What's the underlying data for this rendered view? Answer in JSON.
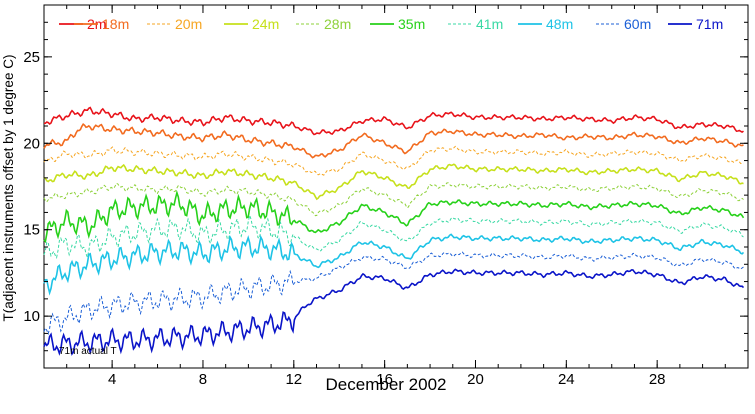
{
  "chart_data": {
    "type": "line",
    "xlabel": "December 2002",
    "ylabel": "T(adjacent instruments offset by 1 degree C)",
    "xlim": [
      1,
      32
    ],
    "ylim": [
      7,
      28
    ],
    "x_ticks": [
      "4",
      "8",
      "12",
      "16",
      "20",
      "24",
      "28"
    ],
    "y_ticks": [
      "10",
      "15",
      "20",
      "25"
    ],
    "annotation": "71m actual T",
    "legend_position": "top",
    "series": [
      {
        "name": "2m",
        "color": "#e8131a",
        "dash": "solid",
        "x": [
          1,
          2,
          3,
          4,
          5,
          6,
          7,
          8,
          9,
          10,
          11,
          12,
          13,
          14,
          15,
          16,
          17,
          18,
          19,
          20,
          21,
          22,
          23,
          24,
          25,
          26,
          27,
          28,
          29,
          30,
          31,
          31.8
        ],
        "y": [
          21.2,
          21.6,
          21.9,
          21.7,
          21.4,
          21.5,
          21.3,
          21.2,
          21.5,
          21.3,
          21.2,
          21.0,
          20.6,
          20.7,
          21.3,
          21.4,
          20.9,
          21.6,
          21.7,
          21.5,
          21.5,
          21.5,
          21.4,
          21.5,
          21.4,
          21.3,
          21.5,
          21.4,
          20.9,
          21.1,
          21.0,
          20.7
        ]
      },
      {
        "name": "18m",
        "color": "#f26b1f",
        "dash": "solid",
        "x": [
          1,
          2,
          2.5,
          3,
          4,
          5,
          6,
          7,
          8,
          9,
          10,
          11,
          12,
          13,
          14,
          15,
          16,
          17,
          18,
          19,
          20,
          21,
          22,
          23,
          24,
          25,
          26,
          27,
          28,
          29,
          30,
          31,
          31.8
        ],
        "y": [
          19.9,
          20.1,
          20.8,
          21.0,
          20.8,
          20.7,
          20.6,
          20.4,
          20.3,
          20.5,
          20.2,
          20.0,
          19.8,
          19.2,
          19.6,
          20.5,
          20.0,
          19.5,
          20.6,
          20.7,
          20.5,
          20.5,
          20.4,
          20.5,
          20.3,
          20.4,
          20.3,
          20.5,
          20.4,
          20.0,
          20.3,
          20.1,
          19.8
        ]
      },
      {
        "name": "20m",
        "color": "#f6a623",
        "dash": "dash",
        "x": [
          1,
          2,
          3,
          4,
          5,
          6,
          7,
          8,
          9,
          10,
          11,
          12,
          13,
          14,
          15,
          16,
          17,
          18,
          19,
          20,
          21,
          22,
          23,
          24,
          25,
          26,
          27,
          28,
          29,
          30,
          31,
          31.8
        ],
        "y": [
          18.9,
          19.4,
          19.3,
          19.6,
          19.5,
          19.4,
          19.3,
          19.2,
          19.4,
          19.2,
          19.0,
          18.8,
          18.2,
          18.5,
          19.4,
          19.0,
          18.5,
          19.6,
          19.7,
          19.5,
          19.5,
          19.5,
          19.4,
          19.5,
          19.3,
          19.4,
          19.5,
          19.4,
          19.0,
          19.3,
          19.1,
          18.8
        ]
      },
      {
        "name": "24m",
        "color": "#c6e01b",
        "dash": "solid",
        "x": [
          1,
          2,
          3,
          4,
          5,
          6,
          7,
          8,
          9,
          10,
          11,
          12,
          13,
          14,
          15,
          16,
          17,
          18,
          19,
          20,
          21,
          22,
          23,
          24,
          25,
          26,
          27,
          28,
          29,
          30,
          31,
          31.8
        ],
        "y": [
          17.8,
          18.2,
          18.1,
          18.6,
          18.5,
          18.4,
          18.3,
          18.1,
          18.4,
          18.2,
          18.0,
          17.7,
          16.9,
          17.4,
          18.4,
          18.0,
          17.4,
          18.5,
          18.7,
          18.5,
          18.5,
          18.5,
          18.4,
          18.5,
          18.3,
          18.4,
          18.5,
          18.4,
          17.9,
          18.3,
          18.1,
          17.7
        ]
      },
      {
        "name": "28m",
        "color": "#8ed13a",
        "dash": "dash",
        "x": [
          1,
          2,
          3,
          4,
          5,
          6,
          7,
          8,
          9,
          10,
          11,
          12,
          13,
          14,
          15,
          16,
          17,
          18,
          19,
          20,
          21,
          22,
          23,
          24,
          25,
          26,
          27,
          28,
          29,
          30,
          31,
          31.8
        ],
        "y": [
          16.8,
          17.0,
          17.2,
          17.5,
          17.4,
          17.3,
          17.4,
          17.1,
          17.3,
          17.2,
          17.0,
          16.7,
          15.9,
          16.4,
          17.4,
          17.0,
          16.4,
          17.5,
          17.6,
          17.5,
          17.5,
          17.5,
          17.4,
          17.5,
          17.3,
          17.4,
          17.5,
          17.4,
          16.9,
          17.3,
          17.1,
          16.7
        ]
      },
      {
        "name": "35m",
        "color": "#27d11a",
        "dash": "solid",
        "x": [
          1,
          2,
          3,
          4,
          5,
          6,
          7,
          8,
          9,
          10,
          11,
          12,
          13,
          14,
          15,
          16,
          17,
          18,
          19,
          20,
          21,
          22,
          23,
          24,
          25,
          26,
          27,
          28,
          29,
          30,
          31,
          31.8
        ],
        "y": [
          14.8,
          15.5,
          15.2,
          16.1,
          16.3,
          16.4,
          16.5,
          15.8,
          16.2,
          16.3,
          16.0,
          15.6,
          14.8,
          15.4,
          16.4,
          16.0,
          15.3,
          16.5,
          16.6,
          16.5,
          16.5,
          16.5,
          16.4,
          16.5,
          16.3,
          16.4,
          16.5,
          16.4,
          15.9,
          16.3,
          16.1,
          15.7
        ]
      },
      {
        "name": "41m",
        "color": "#39d9a4",
        "dash": "dash",
        "x": [
          1,
          2,
          3,
          4,
          5,
          6,
          7,
          8,
          9,
          10,
          11,
          12,
          13,
          14,
          15,
          16,
          17,
          18,
          19,
          20,
          21,
          22,
          23,
          24,
          25,
          26,
          27,
          28,
          29,
          30,
          31,
          31.8
        ],
        "y": [
          13.6,
          14.2,
          14.0,
          14.6,
          14.8,
          15.0,
          15.1,
          14.7,
          15.0,
          15.2,
          15.0,
          14.6,
          13.8,
          14.4,
          15.4,
          15.0,
          14.3,
          15.4,
          15.6,
          15.5,
          15.5,
          15.5,
          15.4,
          15.5,
          15.3,
          15.4,
          15.5,
          15.4,
          14.9,
          15.3,
          15.1,
          14.7
        ]
      },
      {
        "name": "48m",
        "color": "#1ec3e6",
        "dash": "solid",
        "x": [
          1,
          2,
          3,
          4,
          5,
          6,
          7,
          8,
          9,
          10,
          11,
          12,
          13,
          14,
          15,
          16,
          17,
          18,
          19,
          20,
          21,
          22,
          23,
          24,
          25,
          26,
          27,
          28,
          29,
          30,
          31,
          31.8
        ],
        "y": [
          11.8,
          12.6,
          13.0,
          13.3,
          13.5,
          13.7,
          13.8,
          13.6,
          13.9,
          14.0,
          13.9,
          13.6,
          12.9,
          13.4,
          14.3,
          14.0,
          13.3,
          14.4,
          14.6,
          14.5,
          14.5,
          14.5,
          14.4,
          14.5,
          14.3,
          14.4,
          14.5,
          14.4,
          13.9,
          14.3,
          14.1,
          13.7
        ]
      },
      {
        "name": "60m",
        "color": "#1b5fd6",
        "dash": "dash",
        "x": [
          1,
          2,
          3,
          4,
          5,
          6,
          7,
          8,
          9,
          10,
          11,
          12,
          13,
          14,
          15,
          16,
          17,
          18,
          19,
          20,
          21,
          22,
          23,
          24,
          25,
          26,
          27,
          28,
          29,
          30,
          31,
          31.8
        ],
        "y": [
          9.4,
          9.9,
          10.4,
          10.6,
          10.8,
          10.9,
          11.0,
          11.1,
          11.4,
          11.6,
          11.8,
          12.0,
          12.2,
          12.8,
          13.4,
          13.3,
          12.8,
          13.5,
          13.6,
          13.5,
          13.5,
          13.5,
          13.4,
          13.5,
          13.3,
          13.4,
          13.5,
          13.4,
          12.9,
          13.3,
          13.1,
          12.7
        ]
      },
      {
        "name": "71m",
        "color": "#0a14c8",
        "dash": "solid",
        "x": [
          1,
          2,
          3,
          4,
          5,
          6,
          7,
          8,
          9,
          10,
          11,
          12,
          12.5,
          13,
          14,
          15,
          16,
          17,
          18,
          19,
          20,
          21,
          22,
          23,
          24,
          25,
          26,
          27,
          28,
          29,
          30,
          31,
          31.8
        ],
        "y": [
          8.3,
          8.4,
          8.5,
          8.6,
          8.6,
          8.7,
          8.8,
          8.9,
          9.1,
          9.3,
          9.5,
          9.8,
          10.6,
          11.0,
          11.5,
          12.3,
          12.2,
          11.6,
          12.4,
          12.6,
          12.5,
          12.5,
          12.5,
          12.4,
          12.5,
          12.3,
          12.4,
          12.6,
          12.4,
          11.9,
          12.3,
          12.1,
          11.6
        ]
      }
    ]
  }
}
